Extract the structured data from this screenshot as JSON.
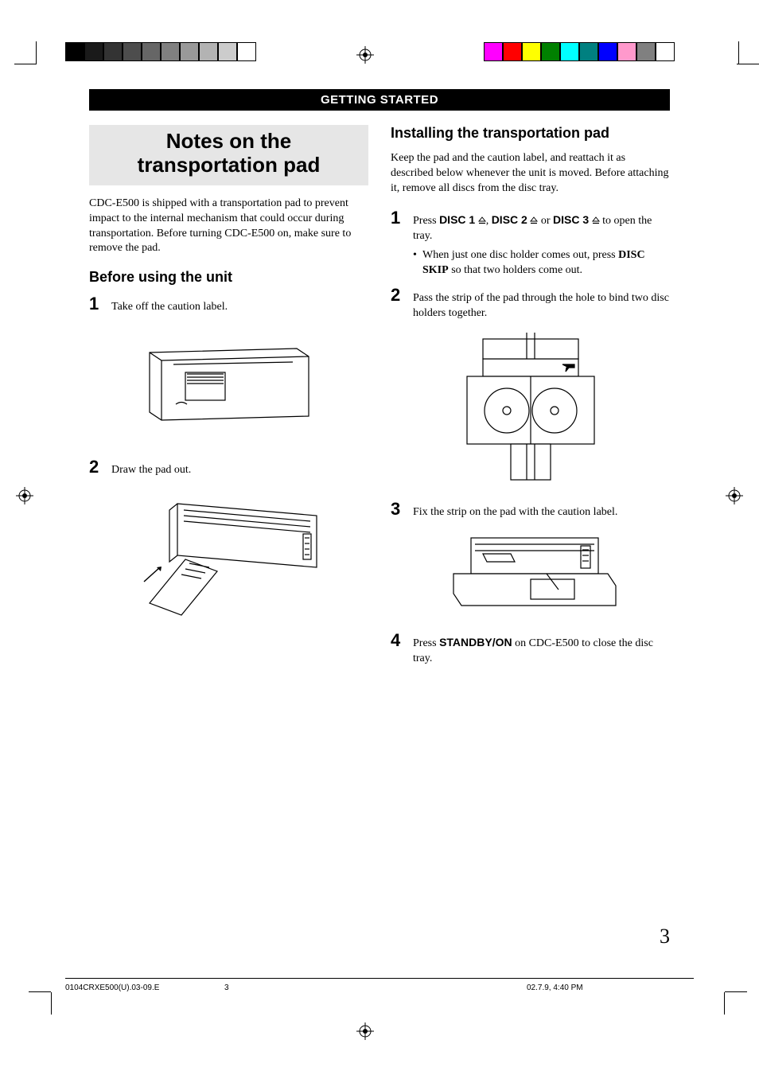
{
  "header": {
    "section": "GETTING STARTED"
  },
  "left_col": {
    "title": "Notes on the transportation pad",
    "intro": "CDC-E500 is shipped with a transportation pad to prevent impact to the internal mechanism that could occur during transportation. Before turning CDC-E500 on, make sure to remove the pad.",
    "sub_heading": "Before using the unit",
    "step1": {
      "num": "1",
      "text": "Take off the caution label."
    },
    "step2": {
      "num": "2",
      "text": "Draw the pad out."
    }
  },
  "right_col": {
    "sub_heading": "Installing the transportation pad",
    "intro": "Keep the pad and the caution label, and reattach it as described below whenever the unit is moved. Before attaching it, remove all discs from the disc tray.",
    "step1": {
      "num": "1",
      "pre": "Press ",
      "disc1": "DISC 1",
      "disc2": "DISC 2",
      "disc3": "DISC 3",
      "mid1": ", ",
      "mid2": " or ",
      "post": " to open the tray.",
      "bullet_pre": "When just one disc holder comes out, press ",
      "bullet_bold": "DISC SKIP",
      "bullet_post": " so that two holders come out."
    },
    "step2": {
      "num": "2",
      "text": "Pass the strip of the pad through the hole to bind two disc holders together."
    },
    "step3": {
      "num": "3",
      "text": "Fix the strip on the pad with the caution label."
    },
    "step4": {
      "num": "4",
      "pre": "Press ",
      "bold": "STANDBY/ON",
      "post": " on CDC-E500 to close the disc tray."
    }
  },
  "page_number": "3",
  "footer": {
    "left": "0104CRXE500(U).03-09.E",
    "mid": "3",
    "right": "02.7.9, 4:40 PM"
  },
  "colors": {
    "gray_bars": [
      "#000000",
      "#1a1a1a",
      "#333333",
      "#4d4d4d",
      "#666666",
      "#808080",
      "#999999",
      "#b3b3b3",
      "#cccccc",
      "#ffffff"
    ],
    "color_bars": [
      "#ff00ff",
      "#ff0000",
      "#ffff00",
      "#008000",
      "#00ffff",
      "#008080",
      "#0000ff",
      "#ff99cc",
      "#808080",
      "#ffffff"
    ],
    "title_bg": "#e6e6e6",
    "header_bg": "#000000",
    "header_fg": "#ffffff"
  }
}
